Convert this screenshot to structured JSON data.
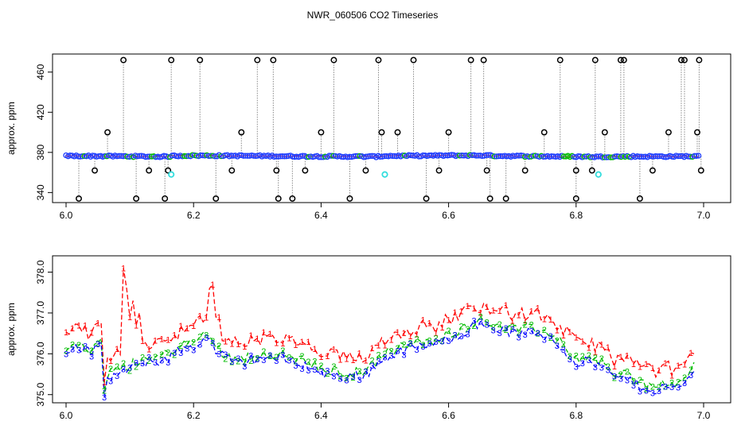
{
  "title": "NWR_060506  CO2 Timeseries",
  "colors": {
    "series1": "#ff0000",
    "series2": "#00bb00",
    "series3": "#0000ff",
    "raw_circle": "#000000",
    "raw_point": "#1f3dff",
    "flag_point": "#33dddd",
    "drop_line": "#888888"
  },
  "chart_data": [
    {
      "type": "scatter",
      "title": "NWR_060506  CO2 Timeseries",
      "xlabel": "",
      "ylabel": "approx. ppm",
      "xlim": [
        6.0,
        7.0
      ],
      "ylim": [
        330,
        478
      ],
      "xticks": [
        "6.0",
        "6.2",
        "6.4",
        "6.6",
        "6.8",
        "7.0"
      ],
      "yticks": [
        "340",
        "380",
        "420",
        "460"
      ],
      "baseline": {
        "x": [
          6.0,
          6.05,
          6.1,
          6.16,
          6.17,
          6.2,
          6.25,
          6.3,
          6.33,
          6.34,
          6.4,
          6.45,
          6.49,
          6.5,
          6.55,
          6.6,
          6.66,
          6.67,
          6.7,
          6.75,
          6.82,
          6.83,
          6.88,
          6.95,
          6.995
        ],
        "y": [
          376.5,
          376.3,
          376.1,
          375.8,
          376.6,
          376.8,
          376.7,
          376.5,
          376.3,
          376.2,
          376.0,
          375.9,
          375.8,
          376.5,
          376.6,
          376.9,
          377.0,
          376.6,
          376.4,
          376.1,
          375.7,
          375.6,
          375.9,
          376.0,
          376.1
        ]
      },
      "outliers": {
        "x": [
          6.02,
          6.045,
          6.065,
          6.09,
          6.11,
          6.13,
          6.155,
          6.16,
          6.165,
          6.21,
          6.235,
          6.26,
          6.275,
          6.3,
          6.325,
          6.33,
          6.333,
          6.355,
          6.375,
          6.4,
          6.42,
          6.445,
          6.47,
          6.49,
          6.495,
          6.52,
          6.545,
          6.565,
          6.585,
          6.6,
          6.635,
          6.655,
          6.66,
          6.665,
          6.69,
          6.72,
          6.75,
          6.775,
          6.8,
          6.8,
          6.825,
          6.83,
          6.845,
          6.87,
          6.875,
          6.9,
          6.92,
          6.945,
          6.965,
          6.97,
          6.99,
          6.993,
          6.996
        ],
        "y": [
          334,
          362,
          400,
          472,
          334,
          362,
          334,
          362,
          472,
          472,
          334,
          362,
          400,
          472,
          472,
          362,
          334,
          334,
          362,
          400,
          472,
          334,
          362,
          472,
          400,
          400,
          472,
          334,
          362,
          400,
          472,
          472,
          362,
          334,
          334,
          362,
          400,
          472,
          362,
          334,
          362,
          472,
          400,
          472,
          472,
          334,
          362,
          400,
          472,
          472,
          400,
          472,
          362
        ]
      },
      "flagged": {
        "x": [
          6.165,
          6.5,
          6.835
        ],
        "y": [
          358,
          358,
          358
        ]
      }
    },
    {
      "type": "line",
      "title": "",
      "xlabel": "",
      "ylabel": "approx. ppm",
      "xlim": [
        6.0,
        7.0
      ],
      "ylim": [
        374.8,
        378.4
      ],
      "xticks": [
        "6.0",
        "6.2",
        "6.4",
        "6.6",
        "6.8",
        "7.0"
      ],
      "yticks": [
        "375.0",
        "376.0",
        "377.0",
        "378.0"
      ],
      "series": [
        {
          "name": "1",
          "mark": "1",
          "x": [],
          "y": []
        },
        {
          "name": "2",
          "mark": "2",
          "x": [],
          "y": []
        },
        {
          "name": "3",
          "mark": "3",
          "x": [],
          "y": []
        }
      ],
      "base": {
        "x": [
          6.0,
          6.02,
          6.04,
          6.055,
          6.06,
          6.065,
          6.08,
          6.1,
          6.12,
          6.14,
          6.16,
          6.18,
          6.2,
          6.22,
          6.24,
          6.26,
          6.28,
          6.3,
          6.33,
          6.36,
          6.38,
          6.4,
          6.42,
          6.44,
          6.47,
          6.5,
          6.53,
          6.56,
          6.58,
          6.6,
          6.62,
          6.64,
          6.66,
          6.68,
          6.7,
          6.72,
          6.74,
          6.76,
          6.78,
          6.8,
          6.82,
          6.84,
          6.86,
          6.88,
          6.9,
          6.92,
          6.94,
          6.96,
          6.975,
          6.985
        ],
        "y": [
          376.2,
          376.3,
          376.1,
          376.3,
          375.1,
          375.5,
          375.6,
          375.7,
          375.9,
          375.9,
          376.0,
          376.2,
          376.3,
          376.5,
          376.1,
          375.9,
          375.9,
          376.0,
          376.0,
          375.9,
          375.8,
          375.6,
          375.6,
          375.5,
          375.6,
          376.0,
          376.2,
          376.3,
          376.3,
          376.5,
          376.6,
          376.8,
          376.8,
          376.7,
          376.6,
          376.6,
          376.6,
          376.5,
          376.2,
          375.9,
          375.9,
          375.8,
          375.5,
          375.5,
          375.3,
          375.2,
          375.3,
          375.2,
          375.5,
          375.7
        ]
      },
      "spikes1": {
        "x": [
          6.09,
          6.095,
          6.1,
          6.105,
          6.11,
          6.115,
          6.225,
          6.23,
          6.235,
          6.24
        ],
        "y": [
          378.1,
          377.6,
          376.9,
          377.3,
          376.7,
          377.0,
          377.6,
          377.7,
          376.9,
          376.9
        ]
      }
    }
  ]
}
